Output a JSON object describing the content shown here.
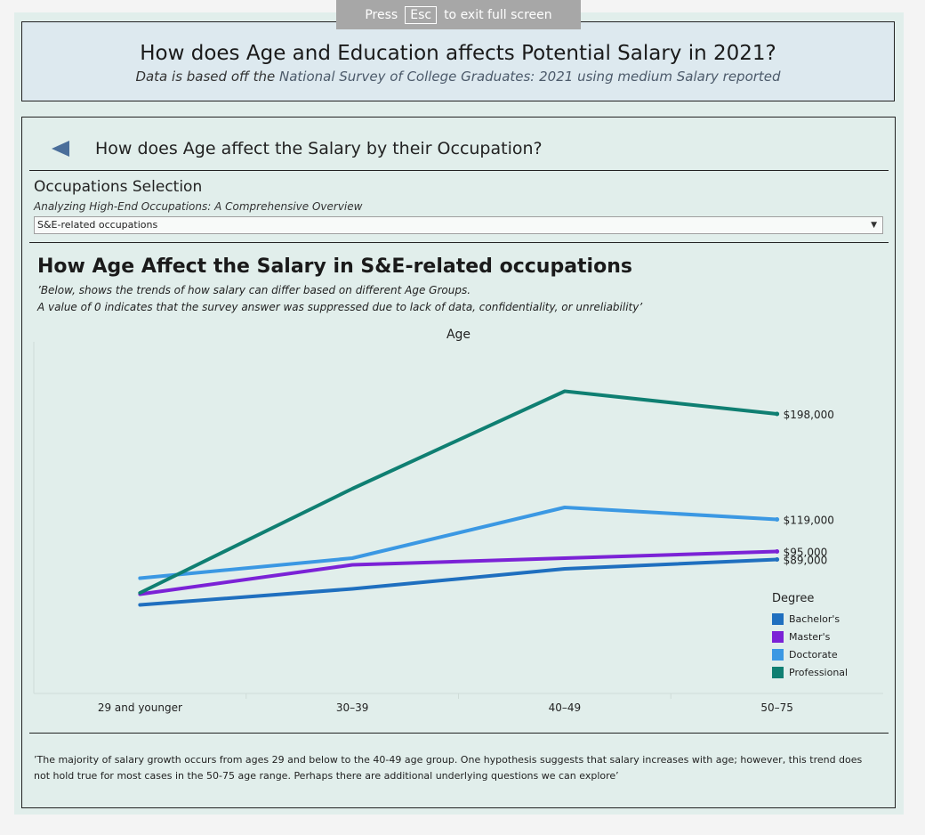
{
  "fullscreen_banner": {
    "press": "Press",
    "key": "Esc",
    "rest": "to exit full screen"
  },
  "header": {
    "title": "How does Age and Education affects Potential Salary in 2021?",
    "subtitle_prefix": "Data is based off the",
    "subtitle_source": "National Survey of College Graduates: 2021 using medium Salary reported"
  },
  "section": {
    "question": "How does Age affect the Salary by their Occupation?",
    "selection_label": "Occupations Selection",
    "selection_sub": "Analyzing High-End Occupations: A Comprehensive Overview",
    "selected_value": "S&E-related occupations"
  },
  "chart_header": {
    "title": "How Age Affect the Salary in S&E-related occupations",
    "note1": "’Below, shows the trends of how salary can differ based on different Age Groups.",
    "note2": "A value of 0 indicates that the survey answer was suppressed due to lack of data, confidentiality, or unreliability’"
  },
  "colors": {
    "bachelors": "#1f6fbf",
    "masters": "#7b22d6",
    "doctorate": "#3b98e3",
    "professional": "#0f7f72"
  },
  "chart_data": {
    "type": "line",
    "title": "How Age Affect the Salary in S&E-related occupations",
    "xlabel": "Age",
    "ylabel": "",
    "categories": [
      "29 and younger",
      "30–39",
      "40–49",
      "50–75"
    ],
    "ylim": [
      0,
      240000
    ],
    "grid": false,
    "legend_title": "Degree",
    "legend_position": "right",
    "series": [
      {
        "name": "Bachelor's",
        "color_key": "bachelors",
        "values": [
          55000,
          67000,
          82000,
          89000
        ],
        "end_label": "$89,000"
      },
      {
        "name": "Master's",
        "color_key": "masters",
        "values": [
          63000,
          85000,
          90000,
          95000
        ],
        "end_label": "$95,000"
      },
      {
        "name": "Doctorate",
        "color_key": "doctorate",
        "values": [
          75000,
          90000,
          128000,
          119000
        ],
        "end_label": "$119,000"
      },
      {
        "name": "Professional",
        "color_key": "professional",
        "values": [
          64000,
          142000,
          215000,
          198000
        ],
        "end_label": "$198,000"
      }
    ]
  },
  "footnote": "’The majority of salary growth occurs from ages 29 and below to the 40-49 age group. One hypothesis suggests that salary increases with age; however, this trend does not hold true for most cases in the 50-75 age range. Perhaps there are additional underlying questions we can explore’"
}
